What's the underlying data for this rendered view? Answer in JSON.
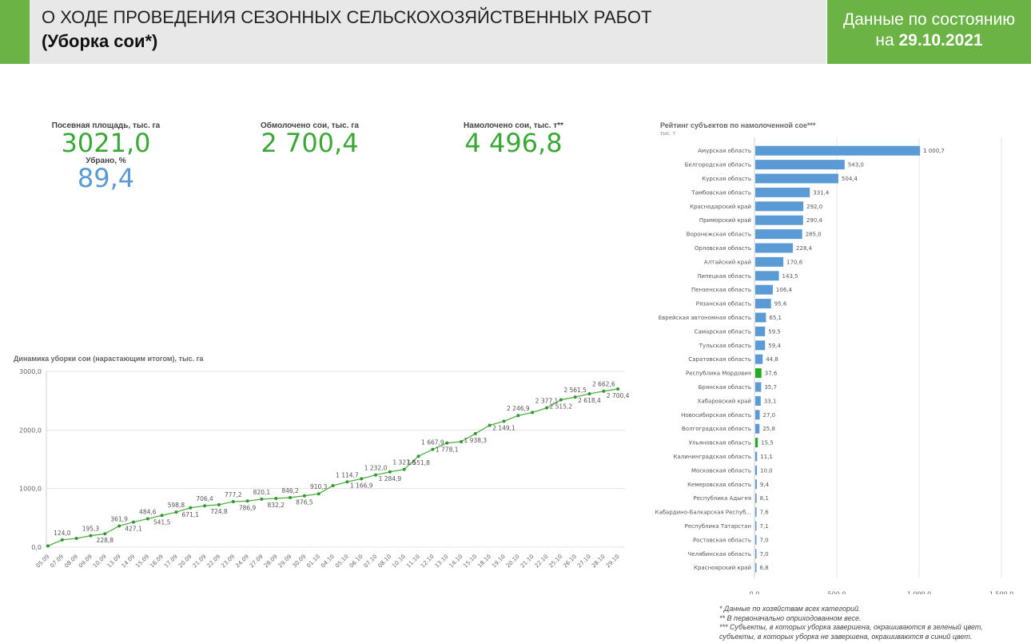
{
  "header": {
    "title": "О ХОДЕ ПРОВЕДЕНИЯ СЕЗОННЫХ СЕЛЬСКОХОЗЯЙСТВЕННЫХ РАБОТ",
    "subtitle": "(Уборка сои*)",
    "date_line1": "Данные по состоянию",
    "date_prefix": "на ",
    "date_value": "29.10.2021"
  },
  "kpis": {
    "sown": {
      "label": "Посевная площадь, тыс. га",
      "value": "3021,0"
    },
    "harvested_pct": {
      "label": "Убрано, %",
      "value": "89,4"
    },
    "threshed": {
      "label": "Обмолочено сои, тыс. га",
      "value": "2 700,4"
    },
    "yield": {
      "label": "Намолочено сои, тыс. т**",
      "value": "4 496,8"
    }
  },
  "colors": {
    "accent_green": "#6ab344",
    "kpi_green": "#3aa835",
    "kpi_blue": "#5b9bd5",
    "bar_blue": "#5b9bd5",
    "bar_green": "#22aa22",
    "line_green": "#52b043"
  },
  "line_chart": {
    "title": "Динамика уборки сои (нарастающим итогом), тыс. га",
    "y_ticks": [
      "0,0",
      "1000,0",
      "2000,0",
      "3000,0"
    ],
    "chart_data": {
      "type": "line",
      "x": [
        "05.09",
        "07.09",
        "08.09",
        "09.09",
        "10.09",
        "13.09",
        "14.09",
        "15.09",
        "16.09",
        "17.09",
        "20.09",
        "21.09",
        "22.09",
        "23.09",
        "24.09",
        "27.09",
        "28.09",
        "29.09",
        "30.09",
        "01.10",
        "04.10",
        "05.10",
        "06.10",
        "07.10",
        "08.10",
        "10.10",
        "11.10",
        "12.10",
        "13.10",
        "14.10",
        "15.10",
        "18.10",
        "19.10",
        "20.10",
        "21.10",
        "22.10",
        "25.10",
        "26.10",
        "27.10",
        "28.10",
        "29.10"
      ],
      "values": [
        20,
        124.0,
        150,
        195.3,
        228.8,
        361.9,
        427.1,
        484.6,
        541.5,
        598.8,
        671.1,
        706.4,
        724.8,
        777.2,
        786.9,
        820.1,
        832.2,
        846.2,
        876.5,
        910.3,
        1050,
        1114.7,
        1166.9,
        1232.0,
        1284.9,
        1327.8,
        1551.8,
        1667.9,
        1778.1,
        1800,
        1938.3,
        2080,
        2149.1,
        2246.9,
        2300,
        2377.1,
        2515.2,
        2561.5,
        2618.4,
        2662.6,
        2700.4
      ],
      "labels": [
        "",
        "124,0",
        "",
        "195,3",
        "228,8",
        "361,9",
        "427,1",
        "484,6",
        "541,5",
        "598,8",
        "671,1",
        "706,4",
        "724,8",
        "777,2",
        "786,9",
        "820,1",
        "832,2",
        "846,2",
        "876,5",
        "910,3",
        "",
        "1 114,7",
        "1 166,9",
        "1 232,0",
        "1 284,9",
        "1 327,8",
        "1 551,8",
        "1 667,9",
        "1 778,1",
        "",
        "1 938,3",
        "",
        "2 149,1",
        "2 246,9",
        "",
        "2 377,1",
        "2 515,2",
        "2 561,5",
        "2 618,4",
        "2 662,6",
        "2 700,4"
      ],
      "ylim": [
        0,
        3000
      ]
    }
  },
  "bar_chart": {
    "title": "Рейтинг субъектов по намолоченной сое***",
    "unit": "тыс. т",
    "x_ticks": [
      "0,0",
      "500,0",
      "1 000,0",
      "1 500,0"
    ],
    "chart_data": {
      "type": "bar",
      "orientation": "horizontal",
      "xlim": [
        0,
        1500
      ],
      "categories": [
        "Амурская область",
        "Белгородская область",
        "Курская область",
        "Тамбовская область",
        "Краснодарский край",
        "Приморский край",
        "Воронежская область",
        "Орловская область",
        "Алтайский край",
        "Липецкая область",
        "Пензенская область",
        "Рязанская область",
        "Еврейская автономная область",
        "Самарская область",
        "Тульская область",
        "Саратовская область",
        "Республика Мордовия",
        "Брянская область",
        "Хабаровский край",
        "Новосибирская область",
        "Волгоградская область",
        "Ульяновская область",
        "Калининградская область",
        "Московская область",
        "Кемеровская область",
        "Республика Адыгея",
        "Кабардино-Балкарская Респуб...",
        "Республика Татарстан",
        "Ростовская область",
        "Челябинская область",
        "Красноярский край"
      ],
      "values": [
        1000.7,
        543.0,
        504.4,
        331.4,
        292.0,
        290.4,
        285.0,
        228.4,
        170.6,
        143.5,
        106.4,
        95.6,
        65.1,
        59.5,
        59.4,
        44.8,
        37.6,
        35.7,
        33.1,
        27.0,
        25.8,
        15.5,
        11.1,
        10.0,
        9.4,
        8.1,
        7.6,
        7.1,
        7.0,
        7.0,
        6.8
      ],
      "labels": [
        "1 000,7",
        "543,0",
        "504,4",
        "331,4",
        "292,0",
        "290,4",
        "285,0",
        "228,4",
        "170,6",
        "143,5",
        "106,4",
        "95,6",
        "65,1",
        "59,5",
        "59,4",
        "44,8",
        "37,6",
        "35,7",
        "33,1",
        "27,0",
        "25,8",
        "15,5",
        "11,1",
        "10,0",
        "9,4",
        "8,1",
        "7,6",
        "7,1",
        "7,0",
        "7,0",
        "6,8"
      ],
      "completed": [
        false,
        false,
        false,
        false,
        false,
        false,
        false,
        false,
        false,
        false,
        false,
        false,
        false,
        false,
        false,
        false,
        true,
        false,
        false,
        false,
        false,
        true,
        false,
        false,
        false,
        false,
        false,
        false,
        false,
        false,
        false
      ]
    }
  },
  "footnotes": [
    "* Данные по хозяйствам всех категорий.",
    "** В первоначально оприходованном весе.",
    "*** Субъекты, в которых уборка завершена, окрашиваются в зеленый цвет,",
    "субъекты, в которых уборка не завершена, окрашиваются в синий цвет."
  ]
}
